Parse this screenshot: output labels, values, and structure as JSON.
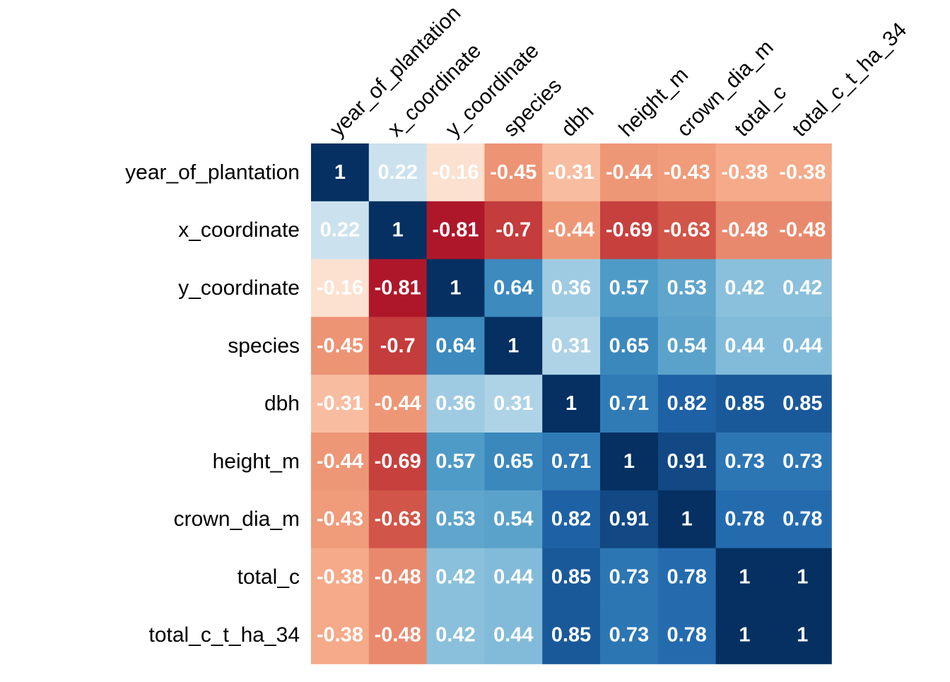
{
  "chart_data": {
    "type": "heatmap",
    "title": "",
    "xlabel": "",
    "ylabel": "",
    "variables": [
      "year_of_plantation",
      "x_coordinate",
      "y_coordinate",
      "species",
      "dbh",
      "height_m",
      "crown_dia_m",
      "total_c",
      "total_c_t_ha_34"
    ],
    "matrix": [
      [
        1,
        0.22,
        -0.16,
        -0.45,
        -0.31,
        -0.44,
        -0.43,
        -0.38,
        -0.38
      ],
      [
        0.22,
        1,
        -0.81,
        -0.7,
        -0.44,
        -0.69,
        -0.63,
        -0.48,
        -0.48
      ],
      [
        -0.16,
        -0.81,
        1,
        0.64,
        0.36,
        0.57,
        0.53,
        0.42,
        0.42
      ],
      [
        -0.45,
        -0.7,
        0.64,
        1,
        0.31,
        0.65,
        0.54,
        0.44,
        0.44
      ],
      [
        -0.31,
        -0.44,
        0.36,
        0.31,
        1,
        0.71,
        0.82,
        0.85,
        0.85
      ],
      [
        -0.44,
        -0.69,
        0.57,
        0.65,
        0.71,
        1,
        0.91,
        0.73,
        0.73
      ],
      [
        -0.43,
        -0.63,
        0.53,
        0.54,
        0.82,
        0.91,
        1,
        0.78,
        0.78
      ],
      [
        -0.38,
        -0.48,
        0.42,
        0.44,
        0.85,
        0.73,
        0.78,
        1,
        1
      ],
      [
        -0.38,
        -0.48,
        0.42,
        0.44,
        0.85,
        0.73,
        0.78,
        1,
        1
      ]
    ],
    "value_range": [
      -1,
      1
    ],
    "colormap": "RdBu",
    "colorbar": false,
    "annotations": true,
    "legend": "none",
    "grid": false
  }
}
